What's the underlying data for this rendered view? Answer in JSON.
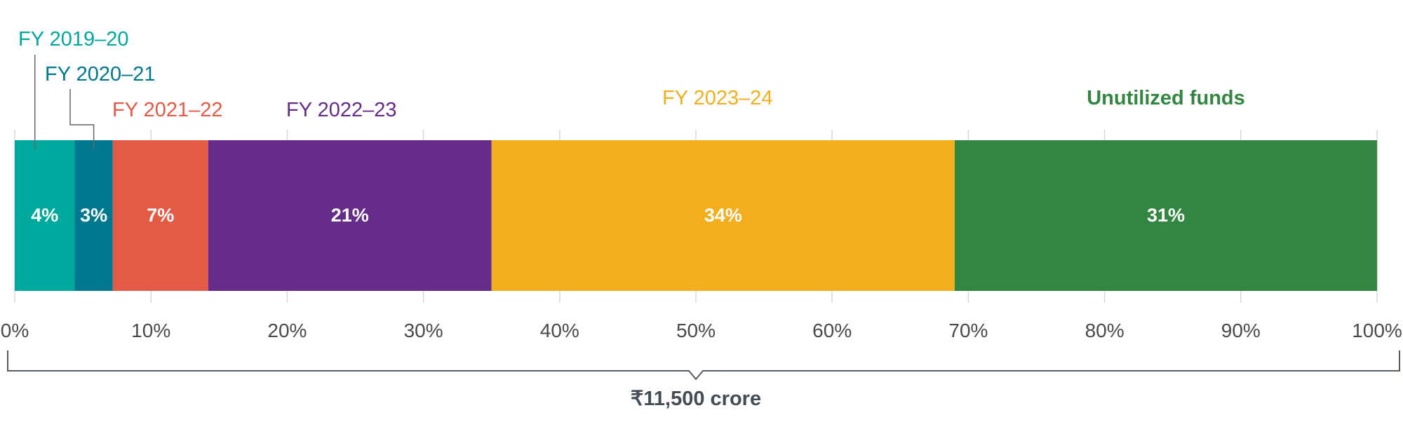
{
  "chart_data": {
    "type": "bar",
    "orientation": "horizontal-stacked-100",
    "categories": [
      "FY 2019–20",
      "FY 2020–21",
      "FY 2021–22",
      "FY 2022–23",
      "FY 2023–24",
      "Unutilized funds"
    ],
    "values": [
      4.4,
      2.8,
      7,
      20.8,
      34,
      31
    ],
    "value_labels": [
      "4%",
      "3%",
      "7%",
      "21%",
      "34%",
      "31%"
    ],
    "colors": [
      "#00a99d",
      "#00788f",
      "#e35b47",
      "#652c8a",
      "#f3ae1e",
      "#338641"
    ],
    "xlim": [
      0,
      100
    ],
    "x_ticks": [
      "0%",
      "10%",
      "20%",
      "30%",
      "40%",
      "50%",
      "60%",
      "70%",
      "80%",
      "90%",
      "100%"
    ],
    "grid": true,
    "total_label": "₹11,500 crore"
  }
}
